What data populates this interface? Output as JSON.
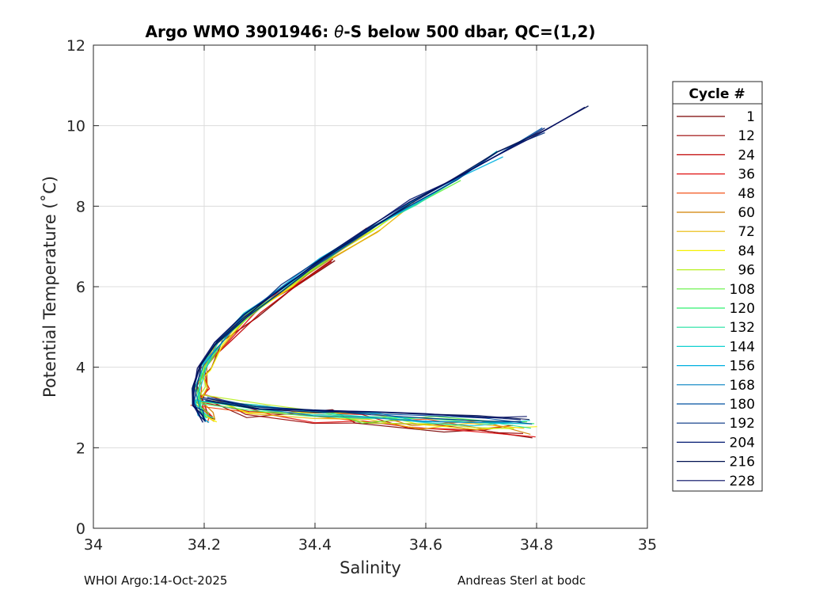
{
  "chart_data": {
    "type": "line",
    "title_prefix": "Argo WMO 3901946: ",
    "title_symbol": "θ",
    "title_suffix": "-S below 500 dbar,  QC=(1,2)",
    "xlabel": "Salinity",
    "ylabel": "Potential Temperature (˚C)",
    "xlim": [
      34,
      35
    ],
    "ylim": [
      0,
      12
    ],
    "xticks": [
      34,
      34.2,
      34.4,
      34.6,
      34.8,
      35
    ],
    "xtick_labels": [
      "34",
      "34.2",
      "34.4",
      "34.6",
      "34.8",
      "35"
    ],
    "yticks": [
      0,
      2,
      4,
      6,
      8,
      10,
      12
    ],
    "ytick_labels": [
      "0",
      "2",
      "4",
      "6",
      "8",
      "10",
      "12"
    ],
    "grid": true,
    "legend_title": "Cycle #",
    "legend_position": "outside-right",
    "series": [
      {
        "name": "1",
        "color": "#7a0000"
      },
      {
        "name": "12",
        "color": "#9a0000"
      },
      {
        "name": "24",
        "color": "#c00000"
      },
      {
        "name": "36",
        "color": "#e01010"
      },
      {
        "name": "48",
        "color": "#f04000"
      },
      {
        "name": "60",
        "color": "#d08000"
      },
      {
        "name": "72",
        "color": "#e8b800"
      },
      {
        "name": "84",
        "color": "#f5f000"
      },
      {
        "name": "96",
        "color": "#b8f020"
      },
      {
        "name": "108",
        "color": "#60f040"
      },
      {
        "name": "120",
        "color": "#30f070"
      },
      {
        "name": "132",
        "color": "#20e0a0"
      },
      {
        "name": "144",
        "color": "#10d0d0"
      },
      {
        "name": "156",
        "color": "#00b0e0"
      },
      {
        "name": "168",
        "color": "#0080c0"
      },
      {
        "name": "180",
        "color": "#0050a0"
      },
      {
        "name": "192",
        "color": "#003080"
      },
      {
        "name": "204",
        "color": "#001870"
      },
      {
        "name": "216",
        "color": "#001050"
      },
      {
        "name": "228",
        "color": "#000a60"
      }
    ],
    "profile_shape": {
      "S": [
        34.21,
        34.2,
        34.19,
        34.19,
        34.2,
        34.23,
        34.28,
        34.35,
        34.42,
        34.5,
        34.58,
        34.66,
        34.74,
        34.82,
        34.9
      ],
      "T": [
        2.7,
        2.85,
        3.1,
        3.5,
        4.0,
        4.6,
        5.3,
        6.0,
        6.7,
        7.4,
        8.1,
        8.7,
        9.3,
        9.9,
        10.5
      ],
      "deep_S": [
        34.2,
        34.3,
        34.4,
        34.5,
        34.6,
        34.7,
        34.78
      ],
      "deep_T": [
        3.2,
        3.0,
        2.9,
        2.85,
        2.8,
        2.78,
        2.76
      ]
    },
    "annotations": {
      "footer_left": "WHOI Argo:14-Oct-2025",
      "footer_right": "Andreas Sterl at bodc"
    }
  }
}
